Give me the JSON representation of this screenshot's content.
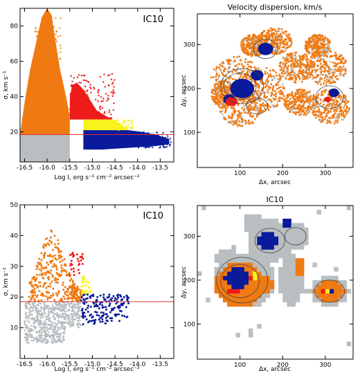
{
  "colors": {
    "gray": "#b9bec1",
    "orange": "#f07a12",
    "red": "#ee1b1b",
    "yellow": "#f6f21c",
    "blue": "#0a1a9a",
    "line": "#e03030"
  },
  "chart_data": [
    {
      "id": "p1",
      "type": "scatter",
      "label": "IC10",
      "title": "",
      "xlabel": "Log I, erg s⁻¹ cm⁻² arcsec⁻²",
      "ylabel": "σ, km s⁻¹",
      "xlim": [
        -16.6,
        -13.2
      ],
      "ylim": [
        3,
        90
      ],
      "xticks": [
        "-16.5",
        "-16.0",
        "-15.5",
        "-15.0",
        "-14.5",
        "-14.0",
        "-13.5"
      ],
      "xtick_values": [
        -16.5,
        -16.0,
        -15.5,
        -15.0,
        -14.5,
        -14.0,
        -13.5
      ],
      "yticks": [
        "20",
        "40",
        "60",
        "80"
      ],
      "ytick_values": [
        20,
        40,
        60,
        80
      ],
      "hline": 18.5,
      "regions": [
        {
          "name": "gray",
          "color": "gray",
          "x": [
            -16.6,
            -15.5
          ],
          "y": [
            3,
            18.5
          ]
        },
        {
          "name": "orange",
          "color": "orange",
          "x": [
            -16.6,
            -15.5
          ],
          "y": [
            18.5,
            90
          ]
        },
        {
          "name": "red",
          "color": "red",
          "x": [
            -15.5,
            -14.5
          ],
          "y": [
            27,
            50
          ]
        },
        {
          "name": "yellow",
          "color": "yellow",
          "x": [
            -15.2,
            -14.5
          ],
          "y": [
            21,
            27
          ]
        },
        {
          "name": "blue",
          "color": "blue",
          "x": [
            -15.2,
            -13.3
          ],
          "y": [
            10,
            21
          ]
        }
      ]
    },
    {
      "id": "p2",
      "type": "heatmap",
      "title": "Velocity dispersion, km/s",
      "xlabel": "Δx, arcsec",
      "ylabel": "Δy, arcsec",
      "xlim": [
        0,
        365
      ],
      "ylim": [
        20,
        370
      ],
      "xticks": [
        "100",
        "200",
        "300"
      ],
      "xtick_values": [
        100,
        200,
        300
      ],
      "yticks": [
        "100",
        "200",
        "300"
      ],
      "ytick_values": [
        100,
        200,
        300
      ]
    },
    {
      "id": "p3",
      "type": "scatter",
      "label": "IC10",
      "title": "",
      "xlabel": "Log I, erg s⁻¹ cm⁻² arcsec⁻²",
      "ylabel": "σ, km s⁻¹",
      "xlim": [
        -16.6,
        -13.2
      ],
      "ylim": [
        0,
        50
      ],
      "xticks": [
        "-16.5",
        "-16.0",
        "-15.5",
        "-15.0",
        "-14.5",
        "-14.0",
        "-13.5"
      ],
      "xtick_values": [
        -16.5,
        -16.0,
        -15.5,
        -15.0,
        -14.5,
        -14.0,
        -13.5
      ],
      "yticks": [
        "10",
        "20",
        "30",
        "40",
        "50"
      ],
      "ytick_values": [
        10,
        20,
        30,
        40,
        50
      ],
      "hline": 18.5
    },
    {
      "id": "p4",
      "type": "heatmap",
      "title": "IC10",
      "xlabel": "Δx, arcsec",
      "ylabel": "Δy, arcsec",
      "xlim": [
        0,
        365
      ],
      "ylim": [
        20,
        370
      ],
      "xticks": [
        "100",
        "200",
        "300"
      ],
      "xtick_values": [
        100,
        200,
        300
      ],
      "yticks": [
        "100",
        "200",
        "300"
      ],
      "ytick_values": [
        100,
        200,
        300
      ]
    }
  ]
}
